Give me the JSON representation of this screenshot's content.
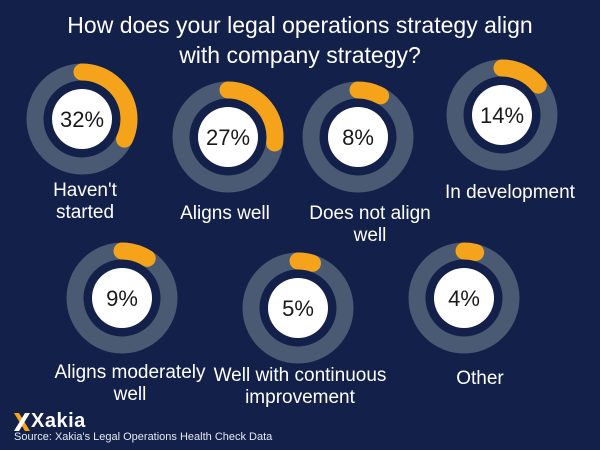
{
  "title_lines": [
    "How does your legal operations strategy align",
    "with company strategy?"
  ],
  "chart_data": {
    "type": "donut",
    "unit": "%",
    "items": [
      {
        "label_lines": [
          "Haven't",
          "started"
        ],
        "value": 32,
        "display": "32%"
      },
      {
        "label_lines": [
          "Aligns well"
        ],
        "value": 27,
        "display": "27%"
      },
      {
        "label_lines": [
          "Does not align",
          "well"
        ],
        "value": 8,
        "display": "8%"
      },
      {
        "label_lines": [
          "In development"
        ],
        "value": 14,
        "display": "14%"
      },
      {
        "label_lines": [
          "Aligns moderately",
          "well"
        ],
        "value": 9,
        "display": "9%"
      },
      {
        "label_lines": [
          "Well with continuous",
          "improvement"
        ],
        "value": 5,
        "display": "5%"
      },
      {
        "label_lines": [
          "Other"
        ],
        "value": 4,
        "display": "4%"
      }
    ]
  },
  "brand": {
    "logo_text": "Xakia"
  },
  "source": "Source: Xakia's Legal Operations Health Check Data",
  "colors": {
    "background": "#13204a",
    "track": "#4a5a72",
    "arc": "#f5a31a",
    "center": "#ffffff",
    "center_text": "#1a1a1a",
    "logo_mark": "#f5a31a"
  }
}
